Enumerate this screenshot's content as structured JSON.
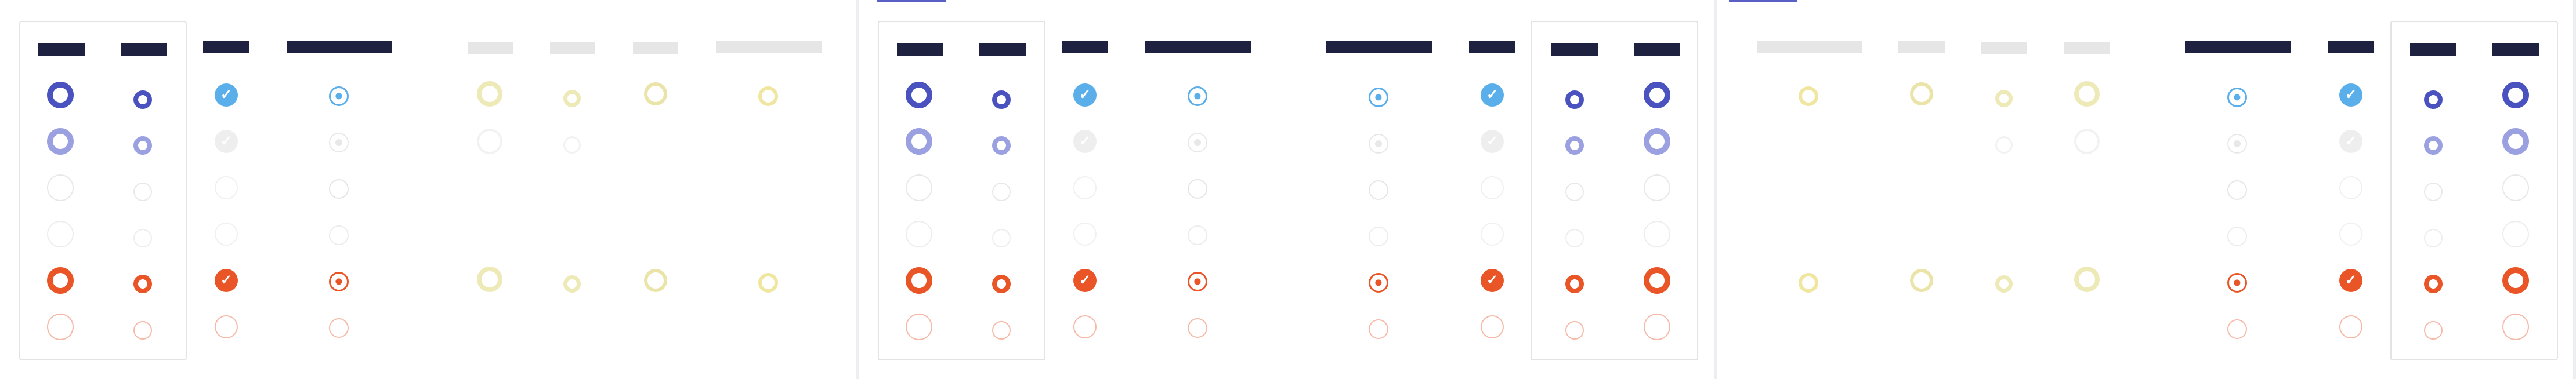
{
  "colors": {
    "accent_dark": "#1e2140",
    "indigo": "#4a52c0",
    "indigo_light": "#9aa0e0",
    "sky": "#5aaeea",
    "orange": "#ea5527",
    "orange_faint": "#f6b9a7",
    "yellow_faint": "#e6e2a0",
    "gray_faint": "#e6e6e6"
  },
  "panels": [
    {
      "id": "panel-1",
      "icons": [
        "radio-icon",
        "check-icon",
        "radio-dot-icon"
      ]
    },
    {
      "id": "panel-2",
      "icons": [
        "radio-icon",
        "check-icon",
        "radio-dot-icon"
      ]
    },
    {
      "id": "panel-3",
      "icons": [
        "radio-icon",
        "check-icon",
        "radio-dot-icon"
      ]
    }
  ]
}
